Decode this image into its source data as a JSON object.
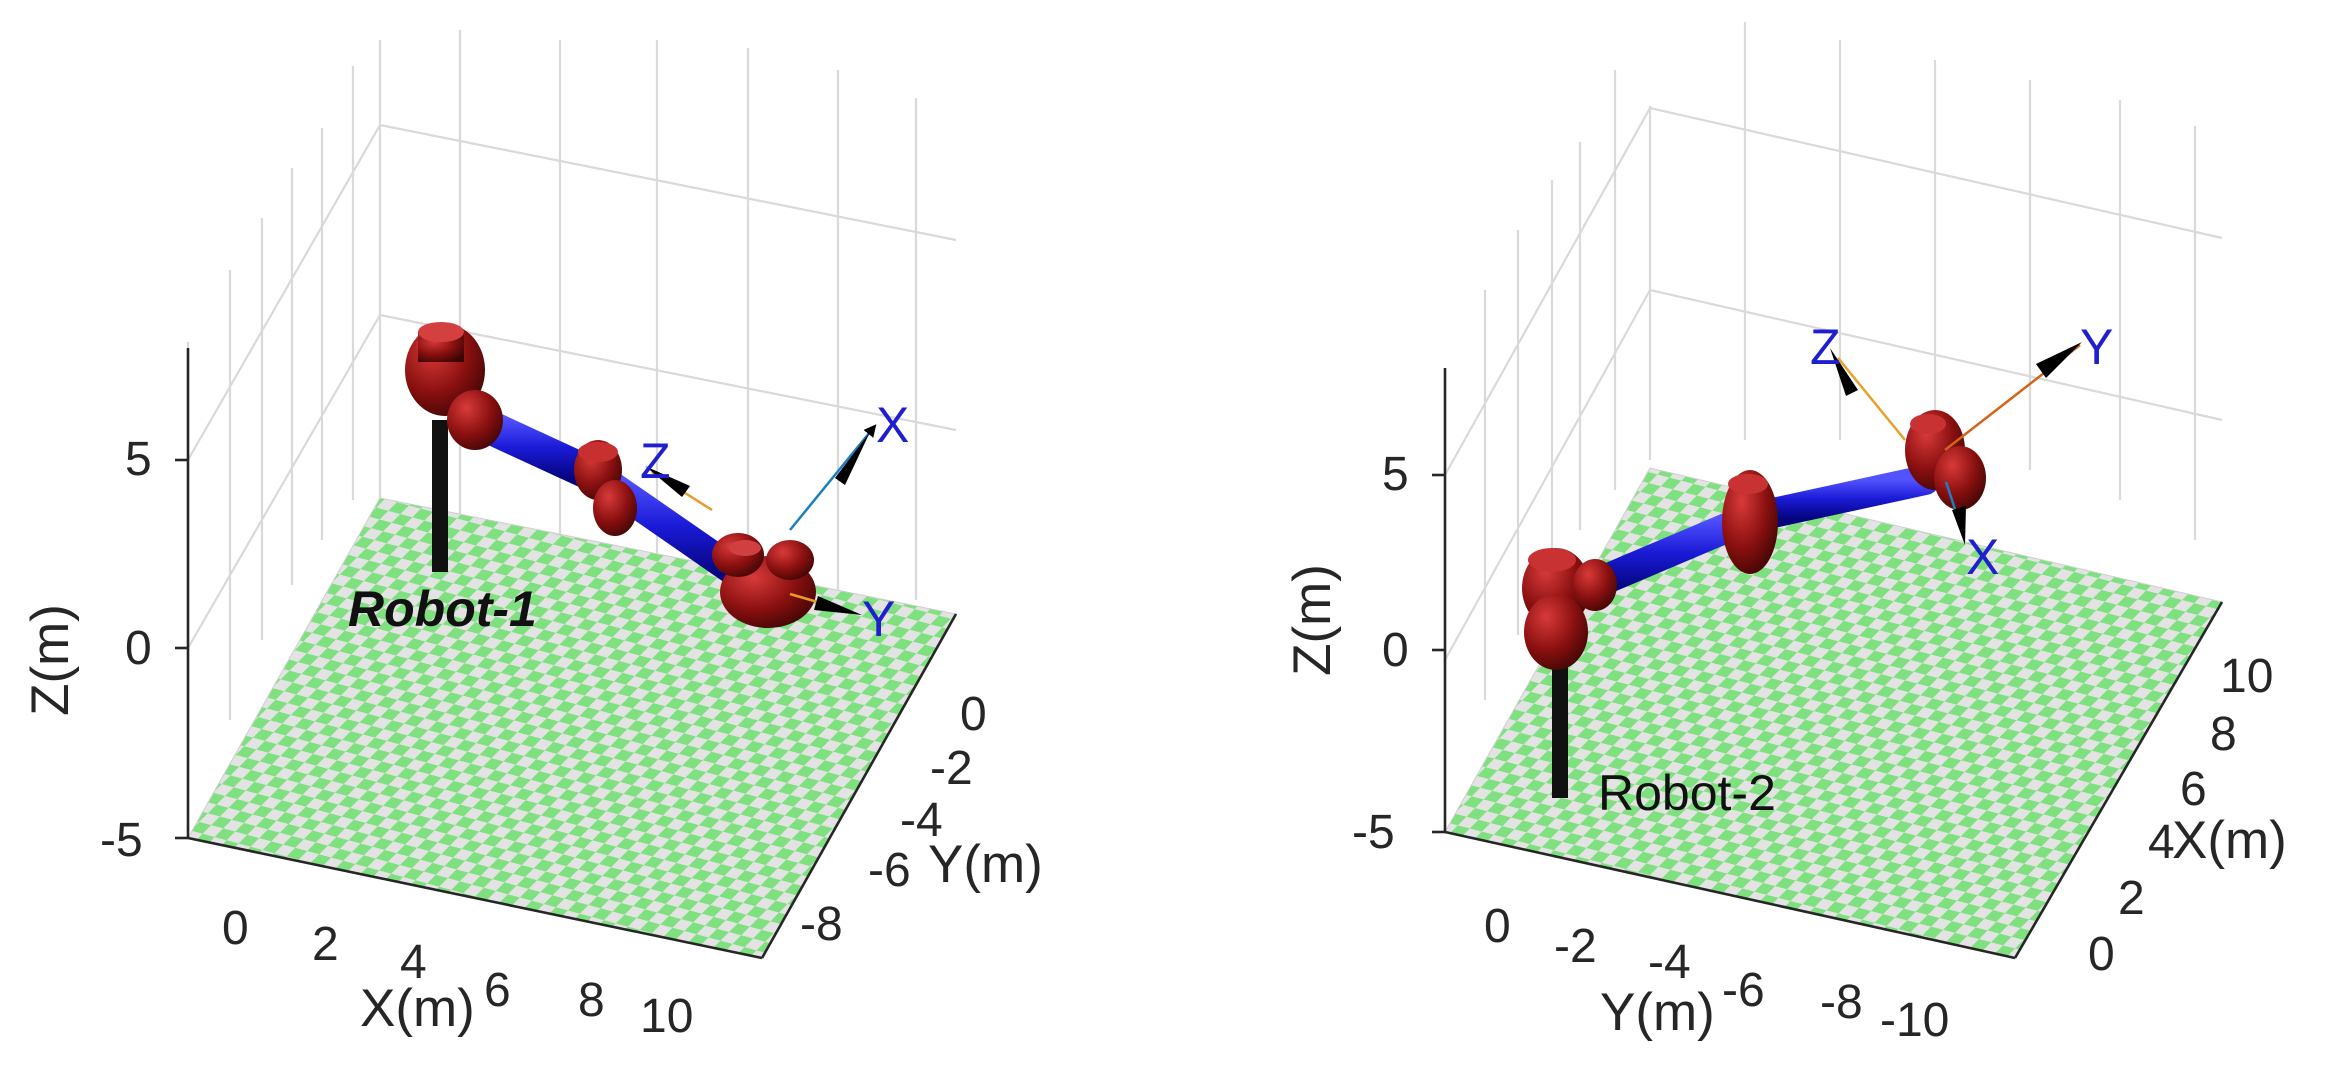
{
  "panels": [
    {
      "id": "robot-1",
      "z_label": "Z(m)",
      "x_label": "X(m)",
      "y_label": "Y(m)",
      "z_ticks": [
        "5",
        "0",
        "-5"
      ],
      "x_ticks": [
        "0",
        "2",
        "4",
        "6",
        "8",
        "10"
      ],
      "y_ticks": [
        "0",
        "-2",
        "-4",
        "-6",
        "-8"
      ],
      "robot_label": "Robot-1",
      "frame_labels": {
        "x": "X",
        "y": "Y",
        "z": "Z"
      }
    },
    {
      "id": "robot-2",
      "z_label": "Z(m)",
      "x_label": "X(m)",
      "y_label": "Y(m)",
      "z_ticks": [
        "5",
        "0",
        "-5"
      ],
      "y_ticks": [
        "0",
        "-2",
        "-4",
        "-6",
        "-8",
        "-10"
      ],
      "x_ticks": [
        "10",
        "8",
        "6",
        "4",
        "2",
        "0"
      ],
      "robot_label": "Robot-2",
      "frame_labels": {
        "x": "X",
        "y": "Y",
        "z": "Z"
      }
    }
  ],
  "colors": {
    "floor_green": "#7fe07f",
    "floor_gray": "#e3e3e3",
    "joint_red": "#8b1010",
    "link_blue": "#1a1ad6",
    "frame_text": "#1f1fcf",
    "pedestal": "#111111"
  }
}
